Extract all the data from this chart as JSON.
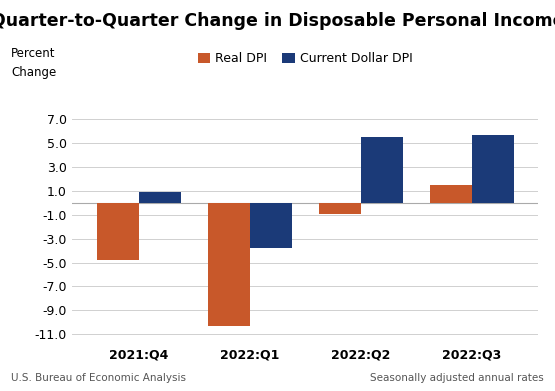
{
  "title": "Quarter-to-Quarter Change in Disposable Personal Income",
  "ylabel_line1": "Percent",
  "ylabel_line2": "Change",
  "categories": [
    "2021:Q4",
    "2022:Q1",
    "2022:Q2",
    "2022:Q3"
  ],
  "real_dpi": [
    -4.8,
    -10.3,
    -0.9,
    1.5
  ],
  "current_dpi": [
    0.9,
    -3.8,
    5.5,
    5.7
  ],
  "real_dpi_color": "#C8582A",
  "current_dpi_color": "#1B3A78",
  "legend_labels": [
    "Real DPI",
    "Current Dollar DPI"
  ],
  "ylim": [
    -11.5,
    7.5
  ],
  "yticks": [
    -11.0,
    -9.0,
    -7.0,
    -5.0,
    -3.0,
    -1.0,
    1.0,
    3.0,
    5.0,
    7.0
  ],
  "footer_left": "U.S. Bureau of Economic Analysis",
  "footer_right": "Seasonally adjusted annual rates",
  "background_color": "#ffffff",
  "bar_width": 0.38,
  "title_fontsize": 12.5,
  "axis_label_fontsize": 8.5,
  "tick_fontsize": 9,
  "legend_fontsize": 9,
  "footer_fontsize": 7.5
}
